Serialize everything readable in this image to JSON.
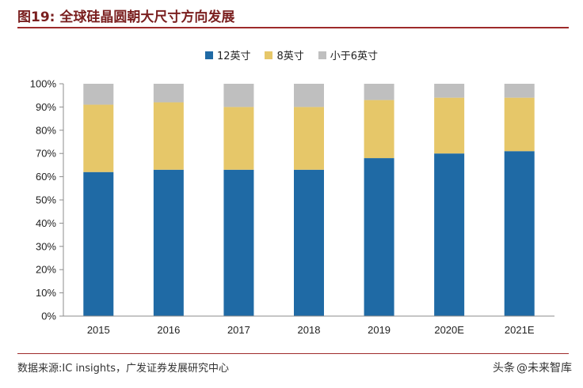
{
  "title": "图19:  全球硅晶圆朝大尺寸方向发展",
  "source": "数据来源:IC insights，广发证券发展研究中心",
  "watermark": {
    "prefix": "头条",
    "handle": "@未来智库"
  },
  "colors": {
    "s12": "#1f6aa5",
    "s8": "#e6c769",
    "s6": "#bfbfbf",
    "title": "#7a1f1f"
  },
  "chart_data": {
    "type": "bar",
    "stacked": true,
    "categories": [
      "2015",
      "2016",
      "2017",
      "2018",
      "2019",
      "2020E",
      "2021E"
    ],
    "series": [
      {
        "name": "12英寸",
        "values": [
          62,
          63,
          63,
          63,
          68,
          70,
          71
        ]
      },
      {
        "name": "8英寸",
        "values": [
          29,
          29,
          27,
          27,
          25,
          24,
          23
        ]
      },
      {
        "name": "小于6英寸",
        "values": [
          9,
          8,
          10,
          10,
          7,
          6,
          6
        ]
      }
    ],
    "ylim": [
      0,
      100
    ],
    "yticks": [
      "0%",
      "10%",
      "20%",
      "30%",
      "40%",
      "50%",
      "60%",
      "70%",
      "80%",
      "90%",
      "100%"
    ],
    "legend": "top"
  }
}
